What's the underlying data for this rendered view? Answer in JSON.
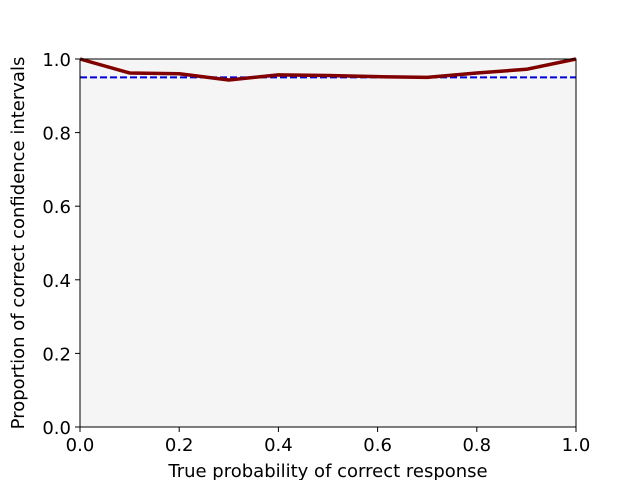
{
  "chart_data": {
    "type": "line",
    "xlabel": "True probability of correct response",
    "ylabel": "Proportion of correct confidence intervals",
    "x": [
      0,
      0.1,
      0.2,
      0.3,
      0.4,
      0.5,
      0.6,
      0.7,
      0.8,
      0.9,
      1.0
    ],
    "series": [
      {
        "color": "#800000",
        "values": [
          1.0,
          0.962,
          0.96,
          0.943,
          0.957,
          0.955,
          0.952,
          0.95,
          0.962,
          0.972,
          1.0
        ]
      }
    ],
    "hline": {
      "value": 0.95,
      "color": "#0000cc"
    },
    "xlim": [
      0,
      1
    ],
    "ylim": [
      0,
      1
    ],
    "xticks": [
      {
        "value": 0,
        "label": "0.0"
      },
      {
        "value": 0.2,
        "label": "0.2"
      },
      {
        "value": 0.4,
        "label": "0.4"
      },
      {
        "value": 0.6,
        "label": "0.6"
      },
      {
        "value": 0.8,
        "label": "0.8"
      },
      {
        "value": 1,
        "label": "1.0"
      }
    ],
    "yticks": [
      {
        "value": 0,
        "label": "0.0"
      },
      {
        "value": 0.2,
        "label": "0.2"
      },
      {
        "value": 0.4,
        "label": "0.4"
      },
      {
        "value": 0.6,
        "label": "0.6"
      },
      {
        "value": 0.8,
        "label": "0.8"
      },
      {
        "value": 1,
        "label": "1.0"
      }
    ],
    "background": "#f5f5f5"
  }
}
